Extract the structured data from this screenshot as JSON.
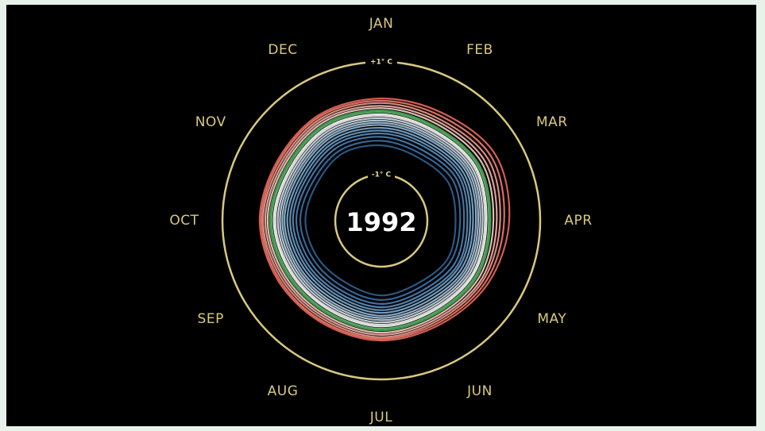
{
  "chart_data": {
    "type": "line",
    "subtype": "polar-spiral",
    "title": "",
    "year_label": "1992",
    "months": [
      "JAN",
      "FEB",
      "MAR",
      "APR",
      "MAY",
      "JUN",
      "JUL",
      "AUG",
      "SEP",
      "OCT",
      "NOV",
      "DEC"
    ],
    "rings": [
      {
        "label": "-1° C",
        "value": -1
      },
      {
        "label": "+1° C",
        "value": 1
      }
    ],
    "radial_range": [
      -1,
      1
    ],
    "grid": false,
    "legend": "none",
    "colors": {
      "background": "#000000",
      "ring": "#d8c97f",
      "month_text": "#d8c97f",
      "year_text": "#ffffff",
      "cold": "#3b6fa3",
      "cool": "#a9c6de",
      "neutral": "#f2f2f2",
      "green": "#5fb86a",
      "warm": "#f07c6d"
    },
    "series": [
      {
        "color": "#2e5f8f",
        "values": [
          -0.48,
          -0.52,
          -0.45,
          -0.5,
          -0.46,
          -0.53,
          -0.49,
          -0.55,
          -0.51,
          -0.47,
          -0.5,
          -0.44
        ]
      },
      {
        "color": "#3b6fa3",
        "values": [
          -0.4,
          -0.44,
          -0.36,
          -0.42,
          -0.39,
          -0.45,
          -0.41,
          -0.46,
          -0.43,
          -0.38,
          -0.42,
          -0.37
        ]
      },
      {
        "color": "#4a7fb2",
        "values": [
          -0.33,
          -0.37,
          -0.29,
          -0.35,
          -0.31,
          -0.38,
          -0.34,
          -0.39,
          -0.36,
          -0.31,
          -0.35,
          -0.3
        ]
      },
      {
        "color": "#5b8fbf",
        "values": [
          -0.27,
          -0.3,
          -0.23,
          -0.29,
          -0.25,
          -0.32,
          -0.28,
          -0.33,
          -0.3,
          -0.25,
          -0.29,
          -0.24
        ]
      },
      {
        "color": "#6d9dc8",
        "values": [
          -0.22,
          -0.25,
          -0.18,
          -0.24,
          -0.21,
          -0.27,
          -0.23,
          -0.28,
          -0.25,
          -0.2,
          -0.24,
          -0.19
        ]
      },
      {
        "color": "#80acd1",
        "values": [
          -0.17,
          -0.2,
          -0.13,
          -0.19,
          -0.16,
          -0.22,
          -0.18,
          -0.23,
          -0.2,
          -0.15,
          -0.19,
          -0.14
        ]
      },
      {
        "color": "#95bbda",
        "values": [
          -0.12,
          -0.15,
          -0.08,
          -0.14,
          -0.11,
          -0.17,
          -0.13,
          -0.18,
          -0.15,
          -0.1,
          -0.14,
          -0.09
        ]
      },
      {
        "color": "#a9c6de",
        "values": [
          -0.08,
          -0.11,
          -0.04,
          -0.1,
          -0.07,
          -0.12,
          -0.09,
          -0.13,
          -0.11,
          -0.06,
          -0.1,
          -0.05
        ]
      },
      {
        "color": "#c2d7e8",
        "values": [
          -0.04,
          -0.07,
          0.0,
          -0.06,
          -0.03,
          -0.08,
          -0.05,
          -0.09,
          -0.07,
          -0.02,
          -0.06,
          -0.01
        ]
      },
      {
        "color": "#dde8f0",
        "values": [
          0.0,
          -0.03,
          0.04,
          -0.02,
          0.01,
          -0.04,
          -0.01,
          -0.05,
          -0.03,
          0.02,
          -0.02,
          0.03
        ]
      },
      {
        "color": "#f2f2f2",
        "values": [
          0.04,
          0.01,
          0.08,
          0.02,
          0.05,
          0.0,
          0.03,
          -0.01,
          0.01,
          0.06,
          0.02,
          0.07
        ]
      },
      {
        "color": "#ffffff",
        "values": [
          0.07,
          0.04,
          0.11,
          0.05,
          0.08,
          0.03,
          0.06,
          0.02,
          0.04,
          0.09,
          0.05,
          0.1
        ]
      },
      {
        "color": "#5fb86a",
        "values": [
          0.11,
          0.08,
          0.15,
          0.09,
          0.12,
          0.07,
          0.1,
          0.06,
          0.08,
          0.13,
          0.09,
          0.14
        ]
      },
      {
        "color": "#4fa85a",
        "values": [
          0.14,
          0.11,
          0.18,
          0.12,
          0.15,
          0.1,
          0.13,
          0.09,
          0.11,
          0.16,
          0.12,
          0.17
        ]
      },
      {
        "color": "#f6d3cb",
        "values": [
          0.18,
          0.16,
          0.24,
          0.17,
          0.19,
          0.14,
          0.17,
          0.13,
          0.15,
          0.2,
          0.16,
          0.21
        ]
      },
      {
        "color": "#f4b4a8",
        "values": [
          0.22,
          0.21,
          0.3,
          0.23,
          0.24,
          0.18,
          0.21,
          0.17,
          0.19,
          0.24,
          0.2,
          0.25
        ]
      },
      {
        "color": "#f29a8d",
        "values": [
          0.27,
          0.26,
          0.37,
          0.29,
          0.28,
          0.22,
          0.25,
          0.21,
          0.23,
          0.28,
          0.24,
          0.29
        ]
      },
      {
        "color": "#f07c6d",
        "values": [
          0.31,
          0.32,
          0.44,
          0.36,
          0.33,
          0.26,
          0.28,
          0.25,
          0.27,
          0.31,
          0.28,
          0.33
        ]
      },
      {
        "color": "#e8685a",
        "values": [
          0.35,
          0.38,
          0.52,
          0.45,
          0.38,
          0.3,
          0.31,
          0.28,
          0.3,
          0.34,
          0.31,
          0.36
        ]
      }
    ]
  }
}
